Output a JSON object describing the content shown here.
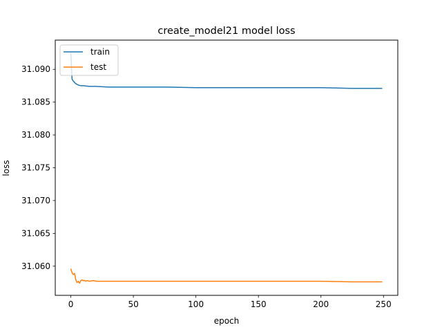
{
  "chart_data": {
    "type": "line",
    "title": "create_model21 model loss",
    "xlabel": "epoch",
    "ylabel": "loss",
    "xlim": [
      -12.45,
      261.45
    ],
    "ylim": [
      31.05555,
      31.09445
    ],
    "xticks": [
      0,
      50,
      100,
      150,
      200,
      250
    ],
    "yticks": [
      31.06,
      31.065,
      31.07,
      31.075,
      31.08,
      31.085,
      31.09
    ],
    "ytick_labels": [
      "31.060",
      "31.065",
      "31.070",
      "31.075",
      "31.080",
      "31.085",
      "31.090"
    ],
    "grid": false,
    "legend_position": "upper left",
    "series": [
      {
        "name": "train",
        "color": "#1f77b4",
        "points": [
          [
            0,
            31.0925
          ],
          [
            1,
            31.0885
          ],
          [
            2,
            31.0882
          ],
          [
            3,
            31.088
          ],
          [
            4,
            31.0878
          ],
          [
            6,
            31.0876
          ],
          [
            8,
            31.0875
          ],
          [
            10,
            31.0875
          ],
          [
            15,
            31.0874
          ],
          [
            20,
            31.0874
          ],
          [
            30,
            31.0873
          ],
          [
            40,
            31.0873
          ],
          [
            50,
            31.0873
          ],
          [
            75,
            31.0873
          ],
          [
            100,
            31.0872
          ],
          [
            125,
            31.0872
          ],
          [
            150,
            31.0872
          ],
          [
            175,
            31.0872
          ],
          [
            200,
            31.0872
          ],
          [
            225,
            31.0871
          ],
          [
            249,
            31.0871
          ]
        ]
      },
      {
        "name": "test",
        "color": "#ff7f0e",
        "points": [
          [
            0,
            31.0596
          ],
          [
            1,
            31.059
          ],
          [
            2,
            31.0587
          ],
          [
            3,
            31.0589
          ],
          [
            4,
            31.0579
          ],
          [
            5,
            31.0575
          ],
          [
            6,
            31.0577
          ],
          [
            7,
            31.0574
          ],
          [
            8,
            31.0578
          ],
          [
            9,
            31.0579
          ],
          [
            10,
            31.0578
          ],
          [
            11,
            31.0578
          ],
          [
            12,
            31.0577
          ],
          [
            13,
            31.0578
          ],
          [
            15,
            31.0577
          ],
          [
            18,
            31.0578
          ],
          [
            20,
            31.0577
          ],
          [
            25,
            31.0577
          ],
          [
            30,
            31.0577
          ],
          [
            40,
            31.0577
          ],
          [
            50,
            31.0577
          ],
          [
            75,
            31.0577
          ],
          [
            100,
            31.0577
          ],
          [
            125,
            31.0577
          ],
          [
            150,
            31.0577
          ],
          [
            175,
            31.0577
          ],
          [
            200,
            31.0577
          ],
          [
            225,
            31.0576
          ],
          [
            249,
            31.0576
          ]
        ]
      }
    ]
  }
}
